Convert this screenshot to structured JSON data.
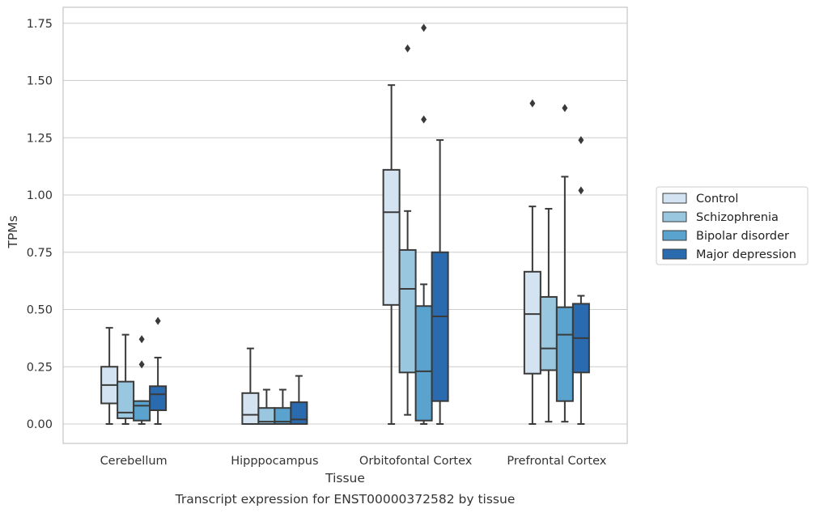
{
  "chart_data": {
    "type": "box",
    "caption": "Transcript expression for ENST00000372582 by tissue",
    "xlabel": "Tissue",
    "ylabel": "TPMs",
    "ylim": [
      -0.085,
      1.82
    ],
    "yticks": [
      "0.00",
      "0.25",
      "0.50",
      "0.75",
      "1.00",
      "1.25",
      "1.50",
      "1.75"
    ],
    "grid": "horizontal",
    "legend_position": "right",
    "categories": [
      "Cerebellum",
      "Hipppocampus",
      "Orbitofontal Cortex",
      "Prefrontal Cortex"
    ],
    "series": [
      {
        "name": "Control",
        "color": "#d3e3f1",
        "boxes": [
          {
            "q1": 0.09,
            "median": 0.17,
            "q3": 0.25,
            "whisker_low": 0.0,
            "whisker_high": 0.42,
            "outliers": []
          },
          {
            "q1": 0.0,
            "median": 0.04,
            "q3": 0.135,
            "whisker_low": 0.0,
            "whisker_high": 0.33,
            "outliers": []
          },
          {
            "q1": 0.52,
            "median": 0.925,
            "q3": 1.11,
            "whisker_low": 0.0,
            "whisker_high": 1.48,
            "outliers": []
          },
          {
            "q1": 0.22,
            "median": 0.48,
            "q3": 0.665,
            "whisker_low": 0.0,
            "whisker_high": 0.95,
            "outliers": [
              1.4
            ]
          }
        ]
      },
      {
        "name": "Schizophrenia",
        "color": "#9ac7e0",
        "boxes": [
          {
            "q1": 0.025,
            "median": 0.05,
            "q3": 0.185,
            "whisker_low": 0.0,
            "whisker_high": 0.39,
            "outliers": []
          },
          {
            "q1": 0.0,
            "median": 0.01,
            "q3": 0.07,
            "whisker_low": 0.0,
            "whisker_high": 0.15,
            "outliers": []
          },
          {
            "q1": 0.225,
            "median": 0.59,
            "q3": 0.76,
            "whisker_low": 0.04,
            "whisker_high": 0.93,
            "outliers": [
              1.64
            ]
          },
          {
            "q1": 0.235,
            "median": 0.33,
            "q3": 0.555,
            "whisker_low": 0.01,
            "whisker_high": 0.94,
            "outliers": []
          }
        ]
      },
      {
        "name": "Bipolar disorder",
        "color": "#5ba3cf",
        "boxes": [
          {
            "q1": 0.015,
            "median": 0.08,
            "q3": 0.1,
            "whisker_low": 0.0,
            "whisker_high": 0.1,
            "outliers": [
              0.26,
              0.37
            ]
          },
          {
            "q1": 0.0,
            "median": 0.01,
            "q3": 0.07,
            "whisker_low": 0.0,
            "whisker_high": 0.15,
            "outliers": []
          },
          {
            "q1": 0.015,
            "median": 0.23,
            "q3": 0.515,
            "whisker_low": 0.0,
            "whisker_high": 0.61,
            "outliers": [
              1.33,
              1.73
            ]
          },
          {
            "q1": 0.1,
            "median": 0.39,
            "q3": 0.51,
            "whisker_low": 0.01,
            "whisker_high": 1.08,
            "outliers": [
              1.38
            ]
          }
        ]
      },
      {
        "name": "Major depression",
        "color": "#2a6aae",
        "boxes": [
          {
            "q1": 0.06,
            "median": 0.13,
            "q3": 0.165,
            "whisker_low": 0.0,
            "whisker_high": 0.29,
            "outliers": [
              0.45
            ]
          },
          {
            "q1": 0.0,
            "median": 0.02,
            "q3": 0.095,
            "whisker_low": 0.0,
            "whisker_high": 0.21,
            "outliers": []
          },
          {
            "q1": 0.1,
            "median": 0.47,
            "q3": 0.75,
            "whisker_low": 0.0,
            "whisker_high": 1.24,
            "outliers": []
          },
          {
            "q1": 0.225,
            "median": 0.375,
            "q3": 0.525,
            "whisker_low": 0.0,
            "whisker_high": 0.56,
            "outliers": [
              1.02,
              1.24
            ]
          }
        ]
      }
    ]
  }
}
